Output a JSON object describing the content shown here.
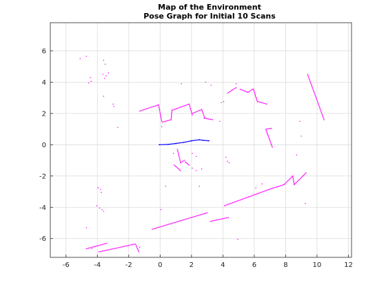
{
  "chart_data": {
    "type": "scatter",
    "title": "Map of the Environment",
    "subtitle": "Pose Graph for Initial 10 Scans",
    "xlabel": "",
    "ylabel": "",
    "xlim": [
      -7,
      12.2
    ],
    "ylim": [
      -7.2,
      7.8
    ],
    "x_ticks": [
      -6,
      -4,
      -2,
      0,
      2,
      4,
      6,
      8,
      10,
      12
    ],
    "y_ticks": [
      -6,
      -4,
      -2,
      0,
      2,
      4,
      6
    ],
    "grid": true,
    "legend": "none",
    "series": [
      {
        "color": "#ff00ff",
        "marker": "dot",
        "segments": [
          [
            [
              -1.3,
              2.15
            ],
            [
              -0.1,
              2.55
            ]
          ],
          [
            [
              -0.1,
              2.55
            ],
            [
              0.1,
              1.5
            ]
          ],
          [
            [
              0.15,
              1.45
            ],
            [
              0.7,
              1.6
            ]
          ],
          [
            [
              0.7,
              1.6
            ],
            [
              0.75,
              2.2
            ]
          ],
          [
            [
              0.75,
              2.2
            ],
            [
              1.85,
              2.6
            ]
          ],
          [
            [
              1.85,
              2.6
            ],
            [
              2.05,
              1.9
            ]
          ],
          [
            [
              2.05,
              2.0
            ],
            [
              2.65,
              2.25
            ]
          ],
          [
            [
              2.65,
              2.25
            ],
            [
              2.85,
              1.7
            ]
          ],
          [
            [
              2.8,
              1.7
            ],
            [
              3.35,
              1.6
            ]
          ],
          [
            [
              4.3,
              3.3
            ],
            [
              4.6,
              3.5
            ]
          ],
          [
            [
              4.6,
              3.5
            ],
            [
              4.85,
              3.65
            ]
          ],
          [
            [
              5.1,
              3.55
            ],
            [
              5.6,
              3.35
            ]
          ],
          [
            [
              5.6,
              3.35
            ],
            [
              5.9,
              3.55
            ]
          ],
          [
            [
              5.95,
              3.55
            ],
            [
              6.2,
              2.75
            ]
          ],
          [
            [
              6.25,
              2.75
            ],
            [
              6.8,
              2.6
            ]
          ],
          [
            [
              6.75,
              1.0
            ],
            [
              7.1,
              1.05
            ]
          ],
          [
            [
              6.75,
              0.95
            ],
            [
              7.15,
              -0.15
            ]
          ],
          [
            [
              9.4,
              4.5
            ],
            [
              10.45,
              1.6
            ]
          ],
          [
            [
              1.1,
              -0.3
            ],
            [
              1.3,
              -1.15
            ]
          ],
          [
            [
              1.3,
              -1.15
            ],
            [
              1.55,
              -1.0
            ]
          ],
          [
            [
              1.6,
              -1.1
            ],
            [
              1.85,
              -1.3
            ]
          ],
          [
            [
              0.9,
              -1.3
            ],
            [
              1.3,
              -1.65
            ]
          ],
          [
            [
              -0.5,
              -5.4
            ],
            [
              3.0,
              -4.35
            ]
          ],
          [
            [
              3.2,
              -4.9
            ],
            [
              4.35,
              -4.65
            ]
          ],
          [
            [
              4.1,
              -3.9
            ],
            [
              7.1,
              -2.8
            ]
          ],
          [
            [
              7.1,
              -2.8
            ],
            [
              7.9,
              -2.55
            ]
          ],
          [
            [
              7.9,
              -2.55
            ],
            [
              8.45,
              -2.0
            ]
          ],
          [
            [
              8.45,
              -2.0
            ],
            [
              8.55,
              -2.55
            ]
          ],
          [
            [
              8.55,
              -2.55
            ],
            [
              9.3,
              -1.8
            ]
          ],
          [
            [
              -3.9,
              -6.85
            ],
            [
              -1.6,
              -6.35
            ]
          ],
          [
            [
              -1.55,
              -6.4
            ],
            [
              -1.35,
              -6.85
            ]
          ],
          [
            [
              -4.7,
              -6.65
            ],
            [
              -3.4,
              -6.3
            ]
          ]
        ],
        "points": [
          [
            -5.1,
            5.5
          ],
          [
            -4.7,
            5.65
          ],
          [
            -3.6,
            5.4
          ],
          [
            -3.5,
            5.15
          ],
          [
            -4.45,
            4.3
          ],
          [
            -4.4,
            4.05
          ],
          [
            -4.55,
            3.95
          ],
          [
            -3.65,
            4.5
          ],
          [
            -3.55,
            4.25
          ],
          [
            -3.45,
            4.4
          ],
          [
            -3.3,
            4.6
          ],
          [
            -3.6,
            3.1
          ],
          [
            -3.0,
            2.6
          ],
          [
            -2.95,
            2.45
          ],
          [
            -2.7,
            1.1
          ],
          [
            1.35,
            3.9
          ],
          [
            2.9,
            4.0
          ],
          [
            3.25,
            3.8
          ],
          [
            4.85,
            3.9
          ],
          [
            3.9,
            2.7
          ],
          [
            4.05,
            2.75
          ],
          [
            3.8,
            1.5
          ],
          [
            0.1,
            1.15
          ],
          [
            8.9,
            1.5
          ],
          [
            9.0,
            0.55
          ],
          [
            0.85,
            -0.55
          ],
          [
            2.05,
            -0.55
          ],
          [
            2.3,
            -0.75
          ],
          [
            4.2,
            -0.8
          ],
          [
            4.3,
            -1.05
          ],
          [
            4.4,
            -1.15
          ],
          [
            8.7,
            -0.65
          ],
          [
            -3.95,
            -2.75
          ],
          [
            -3.8,
            -2.85
          ],
          [
            -3.75,
            -3.05
          ],
          [
            -4.05,
            -3.9
          ],
          [
            -3.85,
            -4.05
          ],
          [
            -3.7,
            -4.15
          ],
          [
            -3.6,
            -4.25
          ],
          [
            2.05,
            -1.5
          ],
          [
            2.3,
            -1.65
          ],
          [
            2.65,
            -1.55
          ],
          [
            0.35,
            -2.65
          ],
          [
            2.5,
            -2.65
          ],
          [
            6.1,
            -2.75
          ],
          [
            6.5,
            -2.5
          ],
          [
            -4.7,
            -5.3
          ],
          [
            0.05,
            -4.15
          ],
          [
            4.95,
            -6.05
          ],
          [
            9.25,
            -3.75
          ],
          [
            -1.3,
            -6.55
          ],
          [
            -4.35,
            -6.65
          ]
        ]
      },
      {
        "color": "#0000ff",
        "marker": "line",
        "points": [
          [
            -0.05,
            0.0
          ],
          [
            0.5,
            0.02
          ],
          [
            1.0,
            0.08
          ],
          [
            1.5,
            0.15
          ],
          [
            2.0,
            0.25
          ],
          [
            2.5,
            0.32
          ],
          [
            2.75,
            0.28
          ],
          [
            3.1,
            0.25
          ]
        ]
      }
    ]
  }
}
